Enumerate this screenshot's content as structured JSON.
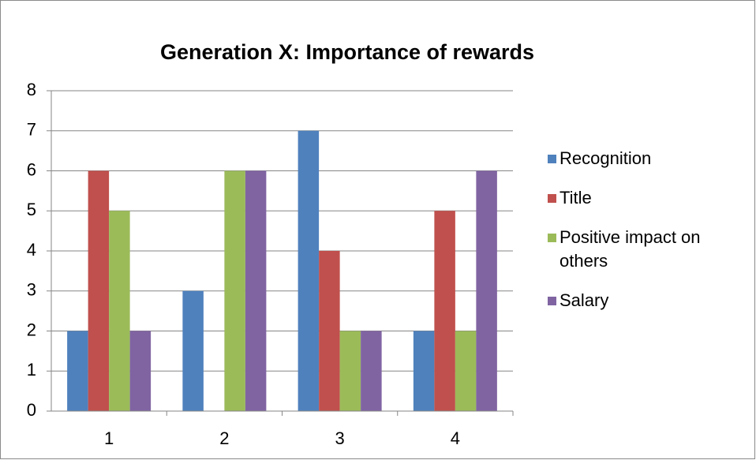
{
  "chart_data": {
    "type": "bar",
    "title": "Generation X: Importance of rewards",
    "categories": [
      "1",
      "2",
      "3",
      "4"
    ],
    "series": [
      {
        "name": "Recognition",
        "color": "#4f81bd",
        "values": [
          2,
          3,
          7,
          2
        ]
      },
      {
        "name": "Title",
        "color": "#c0504d",
        "values": [
          6,
          0,
          4,
          5
        ]
      },
      {
        "name": "Positive impact on others",
        "color": "#9bbb59",
        "values": [
          5,
          6,
          2,
          2
        ]
      },
      {
        "name": "Salary",
        "color": "#8064a2",
        "values": [
          2,
          6,
          2,
          6
        ]
      }
    ],
    "ylim": [
      0,
      8
    ],
    "yticks": [
      0,
      1,
      2,
      3,
      4,
      5,
      6,
      7,
      8
    ],
    "grid": true,
    "legend": "right"
  }
}
